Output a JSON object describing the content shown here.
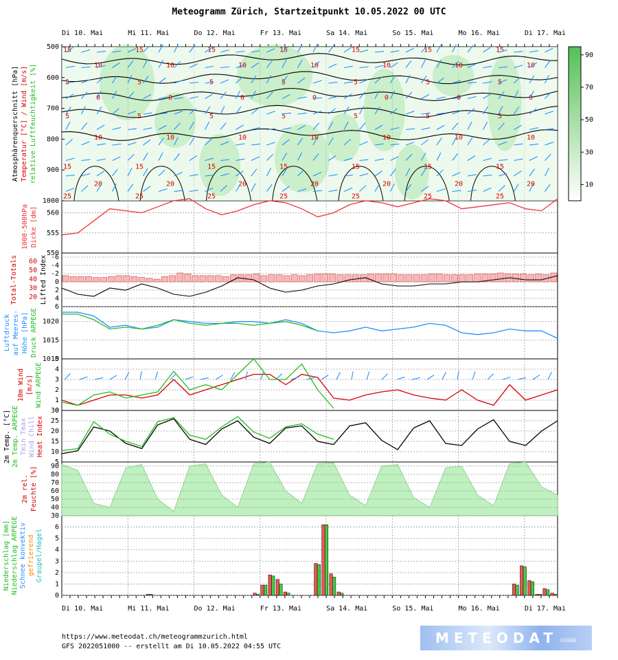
{
  "title": "Meteogramm Zürich, Startzeitpunkt 10.05.2022 00 UTC",
  "footer": {
    "url": "https://www.meteodat.ch/meteogrammzurich.html",
    "run_info": "GFS 2022051000 -- erstellt am Di 10.05.2022 04:55 UTC",
    "logo_text": "METEODAT",
    "logo_sub": "GMBH"
  },
  "colors": {
    "temperature": "#d40000",
    "wind": "#1f8fff",
    "humidity_fill": "#9fe39f",
    "gfs": "#1f8fff",
    "arpege": "#22bb22",
    "thickness": "#ee3333",
    "precip_gfs": "#ee5555",
    "precip_arpege": "#44cc44",
    "grid": "#999999"
  },
  "chart_data": [
    {
      "panel": "cross-section",
      "type": "heatmap",
      "ylabel_lines": [
        "Atmosphärenquerschnitt [hPa]",
        "Temperatur [°C] / Wind [m/s]",
        "relative Luftfeuchtigkeit [%]"
      ],
      "x_days": [
        "Di 10. Mai",
        "Mi 11. Mai",
        "Do 12. Mai",
        "Fr 13. Mai",
        "Sa 14. Mai",
        "So 15. Mai",
        "Mo 16. Mai",
        "Di 17. Mai"
      ],
      "y_ticks": [
        500,
        600,
        700,
        800,
        900,
        1000
      ],
      "ylim": [
        500,
        1000
      ],
      "colorbar_ticks": [
        90,
        70,
        50,
        30,
        10
      ],
      "temperature_contour_labels": [
        "15",
        "10",
        "5",
        "0",
        "5",
        "10",
        "15",
        "20",
        "25"
      ],
      "isotherm_levels_hpa": [
        540,
        600,
        655,
        710,
        785
      ]
    },
    {
      "panel": "thickness",
      "type": "line",
      "ylabel_lines": [
        "1000-500hPa",
        "Dicke [dm]"
      ],
      "y_ticks": [
        560,
        555,
        550
      ],
      "ylim": [
        550,
        563
      ],
      "series": [
        {
          "values": [
            554.5,
            555.0,
            558.0,
            561.0,
            560.5,
            560.0,
            561.5,
            563.0,
            563.5,
            561.0,
            559.5,
            560.5,
            562.0,
            563.0,
            562.5,
            561.0,
            559.0,
            560.0,
            562.0,
            563.0,
            562.5,
            561.5,
            562.5,
            563.5,
            563.0,
            561.0,
            561.5,
            562.0,
            562.5,
            561.0,
            560.5,
            563.5
          ]
        }
      ]
    },
    {
      "panel": "stability",
      "type": "bar",
      "ylabel_lines": [
        "Total-Totals",
        "Lifted Index"
      ],
      "total_totals_ticks": [
        60,
        50,
        40,
        30,
        20
      ],
      "y_ticks": [
        -6,
        -4,
        -2,
        0,
        2,
        4,
        6
      ],
      "ylim": [
        -7,
        6
      ],
      "total_totals": [
        42,
        41,
        41,
        41,
        40,
        40,
        41,
        42,
        42,
        41,
        40,
        39,
        38,
        41,
        42,
        45,
        44,
        42,
        42,
        42,
        42,
        41,
        43,
        43,
        43,
        44,
        42,
        43,
        43,
        42,
        43,
        42,
        43,
        44,
        44,
        44,
        43,
        43,
        43,
        43,
        44,
        44,
        44,
        44,
        43,
        43,
        43,
        43,
        44,
        44,
        43,
        43,
        43,
        43,
        44,
        44,
        44,
        45,
        44,
        44,
        44,
        43,
        44,
        43,
        45
      ],
      "lifted_index": [
        1.5,
        3.0,
        3.5,
        1.5,
        2.0,
        0.5,
        1.5,
        3.0,
        3.5,
        2.5,
        1.0,
        -1.0,
        -0.5,
        1.5,
        2.5,
        2.0,
        1.0,
        0.5,
        -0.5,
        -1.0,
        0.5,
        1.0,
        1.0,
        0.5,
        0.5,
        0.0,
        0.0,
        -0.5,
        -1.0,
        -0.5,
        -0.5,
        -1.5
      ]
    },
    {
      "panel": "pressure",
      "type": "line",
      "ylabel_lines": [
        "Luftdruck",
        "auf Meeres-",
        "Höhe [hPa]",
        "Druck ARPEGE"
      ],
      "y_ticks": [
        1020,
        1015,
        1010
      ],
      "ylim": [
        1010,
        1024
      ],
      "series": [
        {
          "name": "GFS",
          "values": [
            1022.5,
            1022.5,
            1021.5,
            1018.5,
            1019.0,
            1018.0,
            1018.5,
            1020.5,
            1020.0,
            1019.5,
            1019.5,
            1020.0,
            1020.0,
            1019.5,
            1020.5,
            1019.5,
            1017.5,
            1017.0,
            1017.5,
            1018.5,
            1017.5,
            1018.0,
            1018.5,
            1019.5,
            1019.0,
            1017.0,
            1016.5,
            1017.0,
            1018.0,
            1017.5,
            1017.5,
            1015.5
          ]
        },
        {
          "name": "ARPEGE",
          "values": [
            1022.0,
            1022.0,
            1020.5,
            1018.0,
            1018.5,
            1018.0,
            1019.0,
            1020.5,
            1019.5,
            1019.0,
            1019.5,
            1019.5,
            1019.0,
            1019.5,
            1020.0,
            1019.0,
            1017.5
          ]
        }
      ]
    },
    {
      "panel": "wind10m",
      "type": "line",
      "ylabel_lines": [
        "10m Wind",
        "[m/s]",
        "Wind ARPEGE"
      ],
      "y_ticks": [
        5,
        4,
        3,
        2,
        1,
        0
      ],
      "ylim": [
        0,
        5
      ],
      "series": [
        {
          "name": "GFS",
          "values": [
            1.0,
            0.5,
            1.0,
            1.5,
            1.5,
            1.2,
            1.5,
            3.0,
            1.5,
            2.0,
            2.5,
            3.0,
            3.5,
            3.5,
            2.5,
            3.5,
            3.2,
            1.2,
            1.0,
            1.5,
            1.8,
            2.0,
            1.5,
            1.2,
            1.0,
            2.0,
            1.0,
            0.5,
            2.5,
            1.0,
            1.5,
            2.0
          ]
        },
        {
          "name": "ARPEGE",
          "values": [
            0.8,
            0.5,
            1.5,
            1.8,
            1.2,
            1.5,
            1.8,
            3.8,
            2.0,
            2.5,
            2.0,
            3.5,
            5.0,
            3.0,
            3.0,
            4.5,
            2.0,
            0.2
          ]
        }
      ]
    },
    {
      "panel": "temperature2m",
      "type": "line",
      "ylabel_lines": [
        "2m Temp. [°C]",
        "2m Temp. ARPEGE",
        "Tmin Tmax",
        "Wind Chill",
        "Heat Index"
      ],
      "y_ticks": [
        30,
        25,
        20,
        15,
        10,
        5
      ],
      "ylim": [
        5,
        30
      ],
      "series": [
        {
          "name": "GFS",
          "values": [
            9.0,
            10.5,
            22.0,
            20.0,
            14.0,
            11.5,
            23.0,
            26.0,
            16.0,
            13.5,
            21.0,
            25.0,
            17.0,
            14.0,
            21.5,
            22.5,
            15.0,
            13.5,
            22.5,
            24.0,
            15.5,
            11.0,
            21.5,
            25.0,
            14.0,
            13.0,
            21.0,
            25.5,
            15.0,
            13.0,
            20.0,
            25.0
          ]
        },
        {
          "name": "ARPEGE",
          "values": [
            10.5,
            11.5,
            24.5,
            18.5,
            15.0,
            12.5,
            24.5,
            26.5,
            18.0,
            16.0,
            22.0,
            27.0,
            19.5,
            16.5,
            22.0,
            23.5,
            18.5,
            16.0
          ]
        }
      ]
    },
    {
      "panel": "humidity2m",
      "type": "area",
      "ylabel_lines": [
        "2m rel.",
        "Feuchte [%]"
      ],
      "y_ticks": [
        90,
        80,
        70,
        60,
        50,
        40,
        30
      ],
      "ylim": [
        30,
        95
      ],
      "series": [
        {
          "values": [
            92,
            85,
            45,
            40,
            88,
            92,
            50,
            35,
            90,
            93,
            55,
            40,
            93,
            95,
            60,
            45,
            93,
            94,
            55,
            42,
            90,
            92,
            52,
            40,
            88,
            90,
            55,
            42,
            93,
            95,
            65,
            55
          ]
        }
      ]
    },
    {
      "panel": "precipitation",
      "type": "bar",
      "ylabel_lines": [
        "Niederschlag [mm]",
        "Niederschlag ARPEGE",
        "Schnee konvektiv",
        "gefrierend",
        "Graupel/Hagel"
      ],
      "y_ticks": [
        0,
        1,
        2,
        3,
        4,
        5,
        6
      ],
      "ylim": [
        0,
        7
      ],
      "x_days": [
        "Di 10. Mai",
        "Mi 11. Mai",
        "Do 12. Mai",
        "Fr 13. Mai",
        "Sa 14. Mai",
        "So 15. Mai",
        "Mo 16. Mai",
        "Di 17. Mai"
      ],
      "gfs_mm": [
        0,
        0,
        0,
        0,
        0,
        0,
        0,
        0,
        0,
        0,
        0,
        0.1,
        0,
        0,
        0,
        0,
        0,
        0,
        0,
        0,
        0,
        0,
        0,
        0,
        0,
        0.2,
        0.9,
        1.8,
        1.4,
        0.3,
        0,
        0,
        0,
        2.8,
        6.2,
        1.9,
        0.3,
        0,
        0,
        0,
        0,
        0,
        0,
        0,
        0,
        0,
        0,
        0,
        0,
        0,
        0,
        0,
        0,
        0,
        0,
        0,
        0,
        0,
        0,
        1.0,
        2.6,
        1.3,
        0.1,
        0.6,
        0.2
      ],
      "arpege_mm": [
        0,
        0,
        0,
        0,
        0,
        0,
        0,
        0,
        0,
        0,
        0,
        0.1,
        0,
        0,
        0,
        0,
        0,
        0,
        0,
        0,
        0,
        0,
        0,
        0,
        0,
        0.1,
        0.9,
        1.7,
        1.0,
        0.2,
        0,
        0,
        0,
        2.7,
        6.2,
        1.6,
        0.2,
        0,
        0,
        0,
        0,
        0,
        0,
        0,
        0,
        0,
        0,
        0,
        0,
        0,
        0,
        0,
        0,
        0,
        0,
        0,
        0,
        0,
        0,
        0.9,
        2.5,
        1.2,
        0.1,
        0.5,
        0.1
      ]
    }
  ]
}
